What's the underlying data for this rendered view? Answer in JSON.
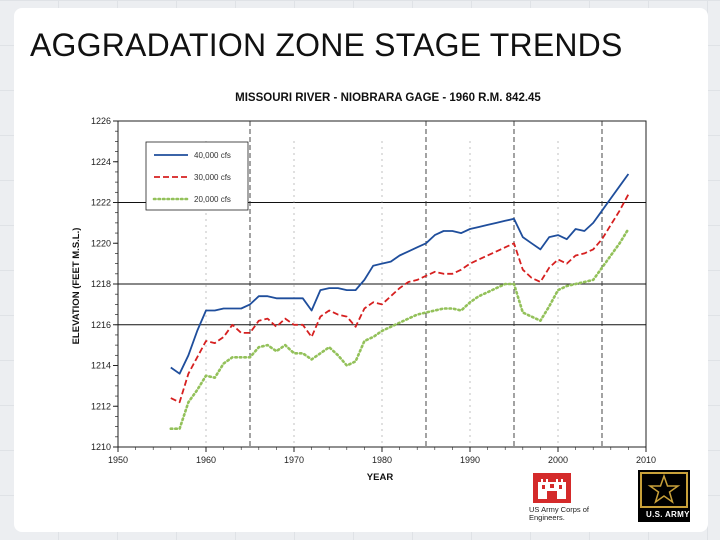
{
  "slide": {
    "title": "AGGRADATION ZONE STAGE TRENDS"
  },
  "chart_data": {
    "type": "line",
    "title": "MISSOURI RIVER - NIOBRARA GAGE - 1960 R.M. 842.45",
    "xlabel": "YEAR",
    "ylabel": "ELEVATION (FEET M.S.L.)",
    "xlim": [
      1950,
      2010
    ],
    "ylim": [
      1210,
      1226
    ],
    "x_ticks": [
      "1950",
      "1960",
      "1970",
      "1980",
      "1990",
      "2000",
      "2010"
    ],
    "y_ticks": [
      "1210",
      "1212",
      "1214",
      "1216",
      "1218",
      "1220",
      "1222",
      "1224",
      "1226"
    ],
    "grid": "horizontal lines at 1218, 1216, 1222; dashed vertical lines",
    "legend_position": "top-left",
    "series": [
      {
        "name": "40,000 cfs",
        "color": "#1f4e9c",
        "style": "solid",
        "x": [
          1956,
          1957,
          1958,
          1959,
          1960,
          1961,
          1962,
          1963,
          1964,
          1965,
          1966,
          1967,
          1968,
          1969,
          1970,
          1971,
          1972,
          1973,
          1974,
          1975,
          1976,
          1977,
          1978,
          1979,
          1980,
          1981,
          1982,
          1983,
          1984,
          1985,
          1986,
          1987,
          1988,
          1989,
          1990,
          1991,
          1992,
          1993,
          1994,
          1995,
          1996,
          1997,
          1998,
          1999,
          2000,
          2001,
          2002,
          2003,
          2004,
          2005,
          2006,
          2007,
          2008
        ],
        "values": [
          1213.9,
          1213.6,
          1214.5,
          1215.7,
          1216.7,
          1216.7,
          1216.8,
          1216.8,
          1216.8,
          1217.0,
          1217.4,
          1217.4,
          1217.3,
          1217.3,
          1217.3,
          1217.3,
          1216.7,
          1217.7,
          1217.8,
          1217.8,
          1217.7,
          1217.7,
          1218.2,
          1218.9,
          1219.0,
          1219.1,
          1219.4,
          1219.6,
          1219.8,
          1220.0,
          1220.4,
          1220.6,
          1220.6,
          1220.5,
          1220.7,
          1220.8,
          1220.9,
          1221.0,
          1221.1,
          1221.2,
          1220.3,
          1220.0,
          1219.7,
          1220.3,
          1220.4,
          1220.2,
          1220.7,
          1220.6,
          1221.0,
          1221.6,
          1222.2,
          1222.8,
          1223.4
        ]
      },
      {
        "name": "30,000 cfs",
        "color": "#d62020",
        "style": "dashed",
        "x": [
          1956,
          1957,
          1958,
          1959,
          1960,
          1961,
          1962,
          1963,
          1964,
          1965,
          1966,
          1967,
          1968,
          1969,
          1970,
          1971,
          1972,
          1973,
          1974,
          1975,
          1976,
          1977,
          1978,
          1979,
          1980,
          1981,
          1982,
          1983,
          1984,
          1985,
          1986,
          1987,
          1988,
          1989,
          1990,
          1991,
          1992,
          1993,
          1994,
          1995,
          1996,
          1997,
          1998,
          1999,
          2000,
          2001,
          2002,
          2003,
          2004,
          2005,
          2006,
          2007,
          2008
        ],
        "values": [
          1212.4,
          1212.2,
          1213.6,
          1214.4,
          1215.2,
          1215.1,
          1215.4,
          1216.0,
          1215.6,
          1215.6,
          1216.2,
          1216.3,
          1215.9,
          1216.3,
          1216.0,
          1216.0,
          1215.4,
          1216.4,
          1216.7,
          1216.5,
          1216.4,
          1215.9,
          1216.8,
          1217.1,
          1217.0,
          1217.4,
          1217.8,
          1218.1,
          1218.2,
          1218.4,
          1218.6,
          1218.5,
          1218.5,
          1218.7,
          1219.0,
          1219.2,
          1219.4,
          1219.6,
          1219.8,
          1220.0,
          1218.7,
          1218.3,
          1218.1,
          1218.8,
          1219.2,
          1219.0,
          1219.4,
          1219.5,
          1219.7,
          1220.2,
          1220.9,
          1221.6,
          1222.4
        ]
      },
      {
        "name": "20,000 cfs",
        "color": "#93c15a",
        "style": "dotted",
        "x": [
          1956,
          1957,
          1958,
          1959,
          1960,
          1961,
          1962,
          1963,
          1964,
          1965,
          1966,
          1967,
          1968,
          1969,
          1970,
          1971,
          1972,
          1973,
          1974,
          1975,
          1976,
          1977,
          1978,
          1979,
          1980,
          1981,
          1982,
          1983,
          1984,
          1985,
          1986,
          1987,
          1988,
          1989,
          1990,
          1991,
          1992,
          1993,
          1994,
          1995,
          1996,
          1997,
          1998,
          1999,
          2000,
          2001,
          2002,
          2003,
          2004,
          2005,
          2006,
          2007,
          2008
        ],
        "values": [
          1210.9,
          1210.9,
          1212.2,
          1212.8,
          1213.5,
          1213.4,
          1214.1,
          1214.4,
          1214.4,
          1214.4,
          1214.9,
          1215.0,
          1214.7,
          1215.0,
          1214.6,
          1214.6,
          1214.3,
          1214.6,
          1214.9,
          1214.5,
          1214.0,
          1214.2,
          1215.2,
          1215.4,
          1215.7,
          1215.9,
          1216.1,
          1216.3,
          1216.5,
          1216.6,
          1216.7,
          1216.8,
          1216.8,
          1216.7,
          1217.1,
          1217.4,
          1217.6,
          1217.8,
          1218.0,
          1218.0,
          1216.6,
          1216.4,
          1216.2,
          1216.9,
          1217.7,
          1217.9,
          1218.0,
          1218.1,
          1218.2,
          1218.8,
          1219.4,
          1220.0,
          1220.7
        ]
      }
    ]
  },
  "logos": {
    "usace_text": "US Army Corps of Engineers.",
    "usace_color": "#d42a2a",
    "army_text": "U.S. ARMY",
    "army_color": "#000000",
    "army_accent": "#c9a13a"
  }
}
